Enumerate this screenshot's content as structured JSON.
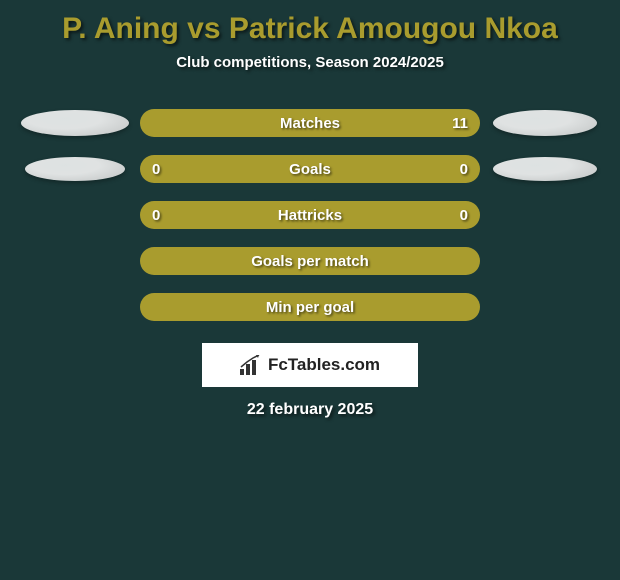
{
  "title": "P. Aning vs Patrick Amougou Nkoa",
  "subtitle": "Club competitions, Season 2024/2025",
  "date": "22 february 2025",
  "logo_text": "FcTables.com",
  "colors": {
    "background": "#1a3838",
    "accent": "#a99c2e",
    "text": "#ffffff",
    "logo_bg": "#ffffff",
    "logo_text": "#222222"
  },
  "rows": [
    {
      "label": "Matches",
      "left_val": "",
      "right_val": "11",
      "left_ellipse": {
        "w": 108,
        "h": 26
      },
      "right_ellipse": {
        "w": 104,
        "h": 26
      }
    },
    {
      "label": "Goals",
      "left_val": "0",
      "right_val": "0",
      "left_ellipse": {
        "w": 100,
        "h": 24
      },
      "right_ellipse": {
        "w": 104,
        "h": 24
      }
    },
    {
      "label": "Hattricks",
      "left_val": "0",
      "right_val": "0",
      "left_ellipse": null,
      "right_ellipse": null
    },
    {
      "label": "Goals per match",
      "left_val": "",
      "right_val": "",
      "left_ellipse": null,
      "right_ellipse": null
    },
    {
      "label": "Min per goal",
      "left_val": "",
      "right_val": "",
      "left_ellipse": null,
      "right_ellipse": null
    }
  ]
}
